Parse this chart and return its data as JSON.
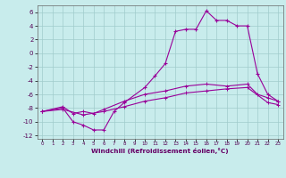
{
  "xlabel": "Windchill (Refroidissement éolien,°C)",
  "bg_color": "#c8ecec",
  "grid_color": "#a0cccc",
  "line_color": "#990099",
  "xlim": [
    -0.5,
    23.5
  ],
  "ylim": [
    -12.5,
    7.0
  ],
  "xticks": [
    0,
    1,
    2,
    3,
    4,
    5,
    6,
    7,
    8,
    9,
    10,
    11,
    12,
    13,
    14,
    15,
    16,
    17,
    18,
    19,
    20,
    21,
    22,
    23
  ],
  "yticks": [
    -12,
    -10,
    -8,
    -6,
    -4,
    -2,
    0,
    2,
    4,
    6
  ],
  "line1_x": [
    0,
    2,
    3,
    4,
    5,
    6,
    7,
    8,
    10,
    11,
    12,
    13,
    14,
    15,
    16,
    17,
    18,
    19,
    20,
    21,
    22,
    23
  ],
  "line1_y": [
    -8.5,
    -8.0,
    -10.0,
    -10.5,
    -11.2,
    -11.2,
    -8.5,
    -7.2,
    -5.0,
    -3.3,
    -1.5,
    3.2,
    3.5,
    3.5,
    6.2,
    4.8,
    4.8,
    4.0,
    4.0,
    -3.0,
    -6.0,
    -7.0
  ],
  "line2_x": [
    0,
    2,
    3,
    4,
    5,
    6,
    8,
    10,
    12,
    14,
    16,
    18,
    20,
    21,
    22,
    23
  ],
  "line2_y": [
    -8.5,
    -7.8,
    -8.8,
    -8.5,
    -8.8,
    -8.2,
    -7.0,
    -6.0,
    -5.5,
    -4.8,
    -4.5,
    -4.8,
    -4.5,
    -6.0,
    -6.5,
    -7.0
  ],
  "line3_x": [
    0,
    2,
    4,
    6,
    8,
    10,
    12,
    14,
    16,
    18,
    20,
    22,
    23
  ],
  "line3_y": [
    -8.5,
    -8.2,
    -9.0,
    -8.5,
    -7.8,
    -7.0,
    -6.5,
    -5.8,
    -5.5,
    -5.2,
    -5.0,
    -7.2,
    -7.5
  ]
}
